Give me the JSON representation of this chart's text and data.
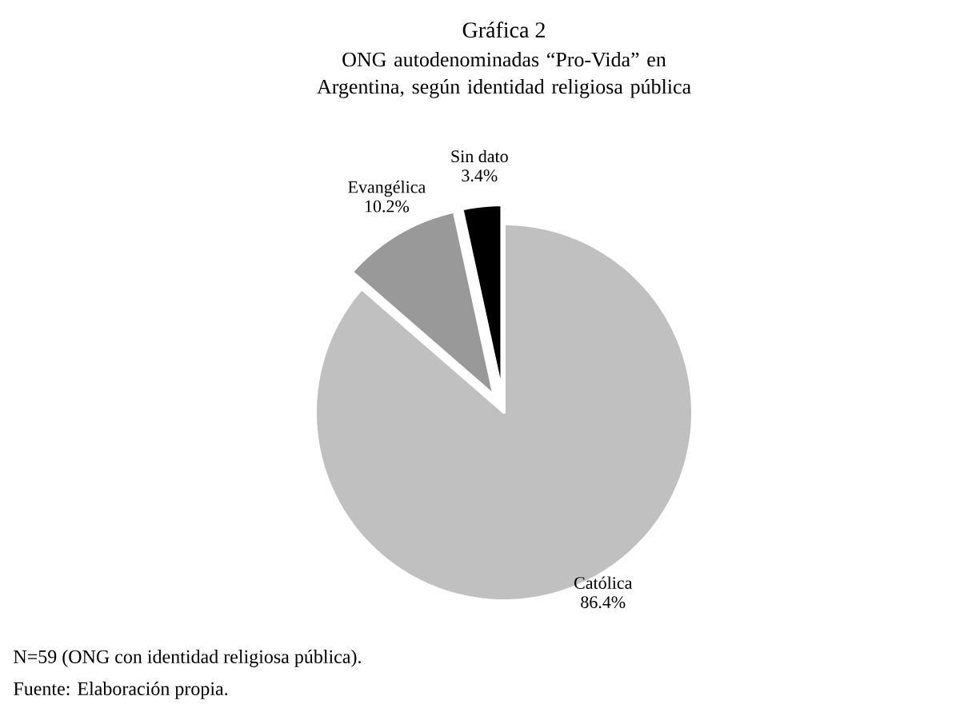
{
  "chart_data": {
    "type": "pie",
    "title": "Gráfica 2",
    "subtitle": "ONG autodenominadas “Pro-Vida” en Argentina, según identidad religiosa pública",
    "categories": [
      "Católica",
      "Evangélica",
      "Sin dato"
    ],
    "values": [
      86.4,
      10.2,
      3.4
    ],
    "colors": [
      "#c0c0c0",
      "#999999",
      "#000000"
    ],
    "value_labels": [
      "86.4%",
      "10.2%",
      "3.4%"
    ],
    "annotations": [
      "N=59 (ONG con identidad religiosa pública).",
      "Fuente: Elaboración propia."
    ]
  }
}
